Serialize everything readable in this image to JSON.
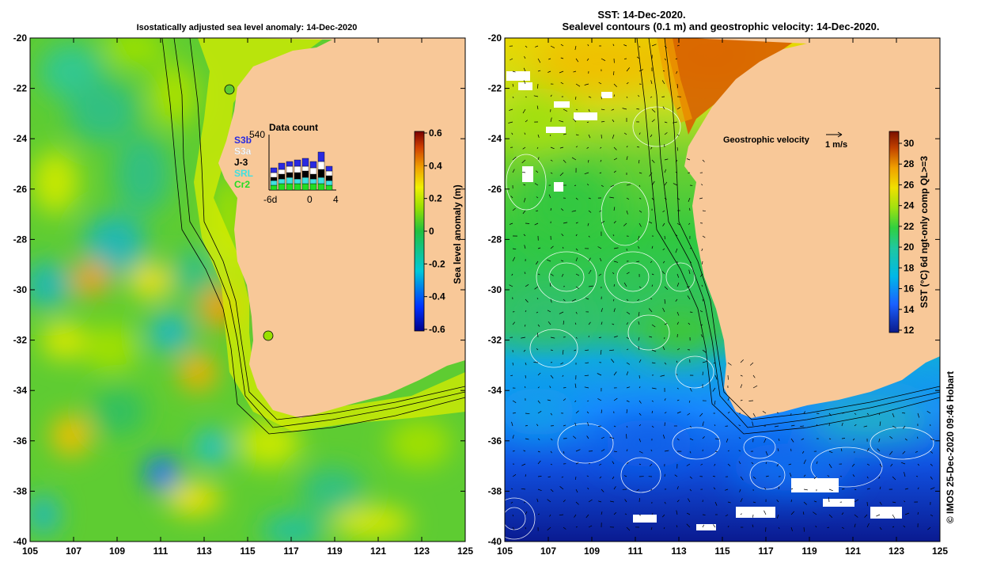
{
  "left_panel": {
    "title": "Isostatically adjusted sea level anomaly: 14-Dec-2020",
    "x_ticks": [
      "105",
      "107",
      "109",
      "111",
      "113",
      "115",
      "117",
      "119",
      "121",
      "123",
      "125"
    ],
    "y_ticks": [
      "-20",
      "-22",
      "-24",
      "-26",
      "-28",
      "-30",
      "-32",
      "-34",
      "-36",
      "-38",
      "-40"
    ],
    "colorbar": {
      "label": "Sea level anomaly (m)",
      "ticks": [
        "0.6",
        "0.4",
        "0.2",
        "0",
        "-0.2",
        "-0.4",
        "-0.6"
      ],
      "range": [
        -0.6,
        0.6
      ]
    },
    "inset": {
      "title": "Data count",
      "max_label": "540",
      "x_ticks": [
        "-6d",
        "0",
        "4"
      ],
      "legend": [
        {
          "name": "S3b",
          "color": "#2a2ae0"
        },
        {
          "name": "S3a",
          "color": "#ffffff"
        },
        {
          "name": "J-3",
          "color": "#000000"
        },
        {
          "name": "SRL",
          "color": "#40e0e0"
        },
        {
          "name": "Cr2",
          "color": "#22dd22"
        }
      ]
    }
  },
  "right_panel": {
    "title_line1": "SST: 14-Dec-2020.",
    "title_line2": "Sealevel contours (0.1 m) and geostrophic velocity: 14-Dec-2020.",
    "x_ticks": [
      "105",
      "107",
      "109",
      "111",
      "113",
      "115",
      "117",
      "119",
      "121",
      "123",
      "125"
    ],
    "y_ticks": [
      "-20",
      "-22",
      "-24",
      "-26",
      "-28",
      "-30",
      "-32",
      "-34",
      "-36",
      "-38",
      "-40"
    ],
    "velocity_key": {
      "label": "Geostrophic velocity",
      "scale": "1 m/s"
    },
    "colorbar": {
      "label": "SST (°C) 6d ngt-only comp QL>=3",
      "ticks": [
        "30",
        "28",
        "26",
        "24",
        "22",
        "20",
        "18",
        "16",
        "14",
        "12"
      ],
      "range": [
        12,
        31
      ]
    }
  },
  "credit": "© IMOS 25-Dec-2020 09:46 Hobart",
  "colors": {
    "land": "#f8c898",
    "sla_colormap": [
      "#00008a",
      "#0030ff",
      "#00c8d8",
      "#20c040",
      "#9ae000",
      "#f0f000",
      "#f0a000",
      "#d04000",
      "#7a0000"
    ],
    "sst_colormap": [
      "#0a1a8a",
      "#1a60ff",
      "#00b8e8",
      "#20c8a0",
      "#30d040",
      "#a0e010",
      "#f0e000",
      "#f0a000",
      "#c04000",
      "#7a1000"
    ]
  }
}
